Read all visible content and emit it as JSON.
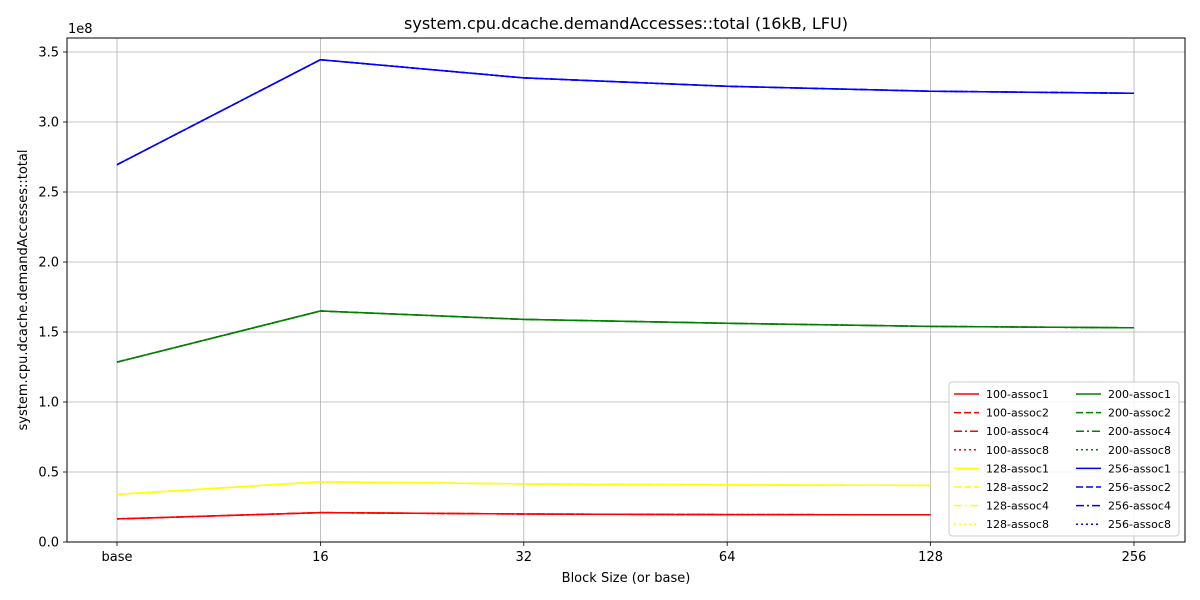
{
  "chart_data": {
    "type": "line",
    "title": "system.cpu.dcache.demandAccesses::total (16kB, LFU)",
    "xlabel": "Block Size (or base)",
    "ylabel": "system.cpu.dcache.demandAccesses::total",
    "y_multiplier_label": "1e8",
    "categories": [
      "base",
      "16",
      "32",
      "64",
      "128",
      "256"
    ],
    "y_ticks": [
      "0.0",
      "0.5",
      "1.0",
      "1.5",
      "2.0",
      "2.5",
      "3.0",
      "3.5"
    ],
    "ylim": [
      0,
      3.6
    ],
    "grid": true,
    "legend_position": "lower-right",
    "legend_columns": 2,
    "series": [
      {
        "name": "100-assoc1",
        "color": "#ff0000",
        "dash": "solid",
        "values": [
          0.165,
          0.21,
          0.2,
          0.196,
          0.194,
          null
        ]
      },
      {
        "name": "100-assoc2",
        "color": "#ff0000",
        "dash": "dashed",
        "values": [
          0.165,
          0.21,
          0.2,
          0.196,
          0.194,
          null
        ]
      },
      {
        "name": "100-assoc4",
        "color": "#ff0000",
        "dash": "dashdot",
        "values": [
          0.165,
          0.21,
          0.2,
          0.196,
          0.194,
          null
        ]
      },
      {
        "name": "100-assoc8",
        "color": "#ff0000",
        "dash": "dotted",
        "values": [
          0.165,
          0.21,
          0.2,
          0.196,
          0.194,
          null
        ]
      },
      {
        "name": "128-assoc1",
        "color": "#ffff00",
        "dash": "solid",
        "values": [
          0.34,
          0.43,
          0.415,
          0.408,
          0.404,
          null
        ]
      },
      {
        "name": "128-assoc2",
        "color": "#ffff00",
        "dash": "dashed",
        "values": [
          0.34,
          0.43,
          0.415,
          0.408,
          0.404,
          null
        ]
      },
      {
        "name": "128-assoc4",
        "color": "#ffff00",
        "dash": "dashdot",
        "values": [
          0.34,
          0.43,
          0.415,
          0.408,
          0.404,
          null
        ]
      },
      {
        "name": "128-assoc8",
        "color": "#ffff00",
        "dash": "dotted",
        "values": [
          0.34,
          0.43,
          0.415,
          0.408,
          0.404,
          null
        ]
      },
      {
        "name": "200-assoc1",
        "color": "#008000",
        "dash": "solid",
        "values": [
          1.285,
          1.65,
          1.59,
          1.562,
          1.54,
          1.53
        ]
      },
      {
        "name": "200-assoc2",
        "color": "#008000",
        "dash": "dashed",
        "values": [
          1.285,
          1.65,
          1.59,
          1.562,
          1.54,
          1.53
        ]
      },
      {
        "name": "200-assoc4",
        "color": "#008000",
        "dash": "dashdot",
        "values": [
          1.285,
          1.65,
          1.59,
          1.562,
          1.54,
          1.53
        ]
      },
      {
        "name": "200-assoc8",
        "color": "#008000",
        "dash": "dotted",
        "values": [
          1.285,
          1.65,
          1.59,
          1.562,
          1.54,
          1.53
        ]
      },
      {
        "name": "256-assoc1",
        "color": "#0000ff",
        "dash": "solid",
        "values": [
          2.695,
          3.445,
          3.315,
          3.255,
          3.22,
          3.205
        ]
      },
      {
        "name": "256-assoc2",
        "color": "#0000ff",
        "dash": "dashed",
        "values": [
          2.695,
          3.445,
          3.315,
          3.255,
          3.22,
          3.205
        ]
      },
      {
        "name": "256-assoc4",
        "color": "#0000ff",
        "dash": "dashdot",
        "values": [
          2.695,
          3.445,
          3.315,
          3.255,
          3.22,
          3.205
        ]
      },
      {
        "name": "256-assoc8",
        "color": "#0000ff",
        "dash": "dotted",
        "values": [
          2.695,
          3.445,
          3.315,
          3.255,
          3.22,
          3.205
        ]
      }
    ]
  }
}
